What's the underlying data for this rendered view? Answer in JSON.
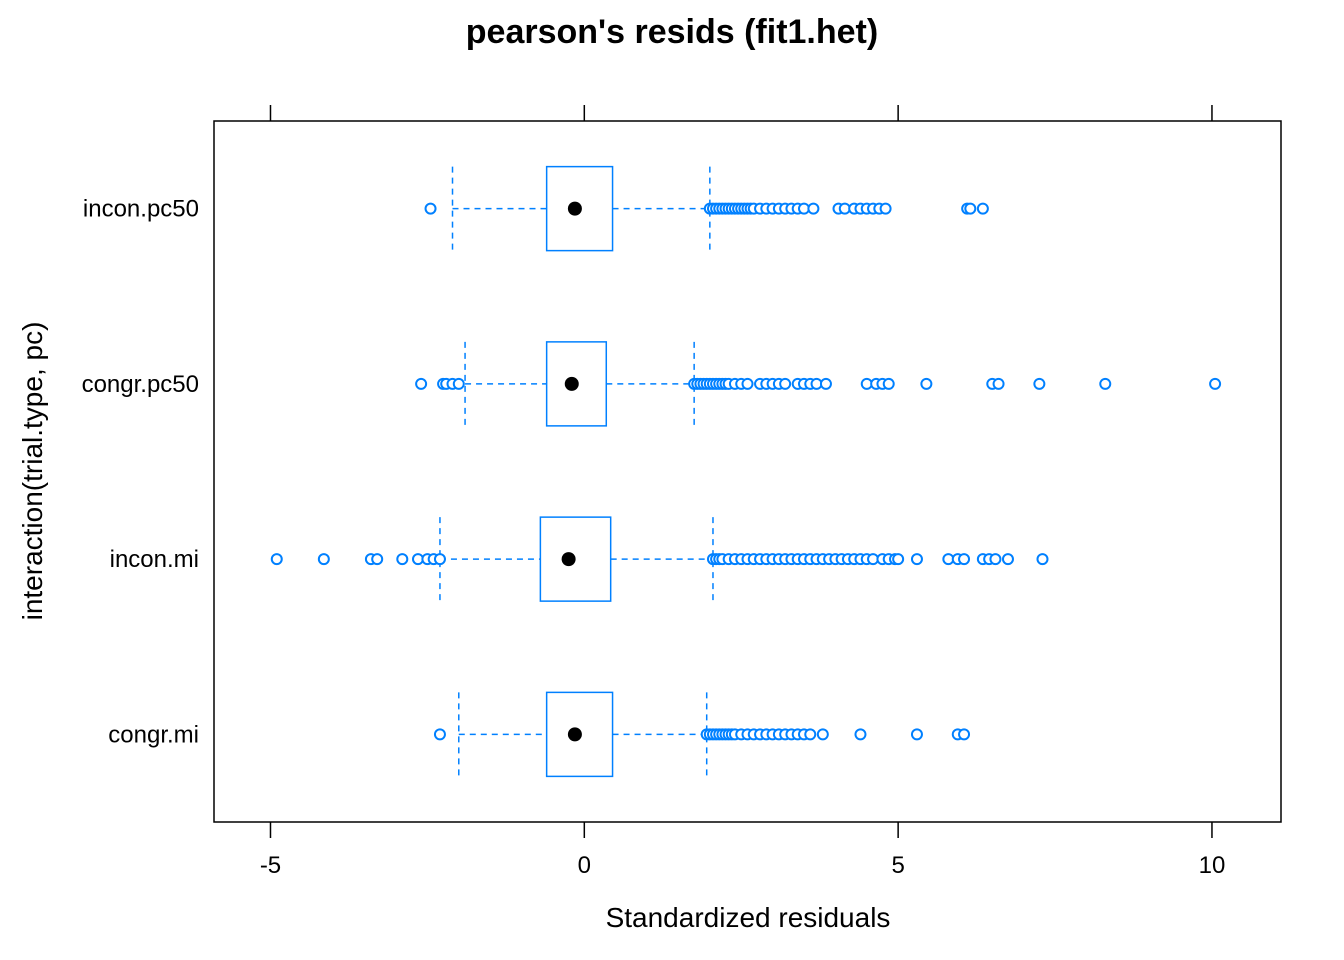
{
  "chart_data": {
    "type": "boxplot",
    "title": "pearson's resids (fit1.het)",
    "xlabel": "Standardized residuals",
    "ylabel": "interaction(trial.type, pc)",
    "xlim": [
      -5.9,
      11.1
    ],
    "xticks": [
      -5,
      0,
      5,
      10
    ],
    "xtick_labels": [
      "-5",
      "0",
      "5",
      "10"
    ],
    "grid": false,
    "colors": {
      "box": "#0080ff",
      "median": "#000000",
      "frame": "#000000"
    },
    "categories": [
      "incon.pc50",
      "congr.pc50",
      "incon.mi",
      "congr.mi"
    ],
    "boxes": [
      {
        "name": "incon.pc50",
        "whisker_low": -2.1,
        "q1": -0.6,
        "median": -0.15,
        "q3": 0.45,
        "whisker_high": 2.0,
        "outliers": [
          -2.45,
          2.0,
          2.05,
          2.1,
          2.15,
          2.2,
          2.25,
          2.3,
          2.35,
          2.4,
          2.45,
          2.5,
          2.55,
          2.6,
          2.65,
          2.7,
          2.8,
          2.9,
          3.0,
          3.1,
          3.2,
          3.3,
          3.4,
          3.5,
          3.65,
          4.05,
          4.15,
          4.3,
          4.4,
          4.5,
          4.6,
          4.7,
          4.8,
          6.1,
          6.15,
          6.35
        ]
      },
      {
        "name": "congr.pc50",
        "whisker_low": -1.9,
        "q1": -0.6,
        "median": -0.2,
        "q3": 0.35,
        "whisker_high": 1.75,
        "outliers": [
          -2.6,
          -2.25,
          -2.2,
          -2.1,
          -2.0,
          1.75,
          1.8,
          1.85,
          1.9,
          1.95,
          2.0,
          2.05,
          2.1,
          2.15,
          2.2,
          2.25,
          2.3,
          2.4,
          2.5,
          2.6,
          2.8,
          2.9,
          3.0,
          3.1,
          3.2,
          3.4,
          3.5,
          3.6,
          3.7,
          3.85,
          4.5,
          4.65,
          4.75,
          4.85,
          5.45,
          6.5,
          6.6,
          7.25,
          8.3,
          10.05
        ]
      },
      {
        "name": "incon.mi",
        "whisker_low": -2.3,
        "q1": -0.7,
        "median": -0.25,
        "q3": 0.42,
        "whisker_high": 2.05,
        "outliers": [
          -4.9,
          -4.15,
          -3.4,
          -3.3,
          -2.9,
          -2.65,
          -2.5,
          -2.4,
          -2.3,
          2.05,
          2.1,
          2.15,
          2.2,
          2.3,
          2.4,
          2.5,
          2.6,
          2.7,
          2.8,
          2.9,
          3.0,
          3.1,
          3.2,
          3.3,
          3.4,
          3.5,
          3.6,
          3.7,
          3.8,
          3.9,
          4.0,
          4.1,
          4.2,
          4.3,
          4.4,
          4.5,
          4.6,
          4.75,
          4.85,
          4.95,
          5.0,
          5.3,
          5.8,
          5.95,
          6.05,
          6.35,
          6.45,
          6.55,
          6.75,
          7.3
        ]
      },
      {
        "name": "congr.mi",
        "whisker_low": -2.0,
        "q1": -0.6,
        "median": -0.15,
        "q3": 0.45,
        "whisker_high": 1.95,
        "outliers": [
          -2.3,
          1.95,
          2.0,
          2.05,
          2.1,
          2.15,
          2.2,
          2.25,
          2.3,
          2.35,
          2.4,
          2.5,
          2.6,
          2.7,
          2.8,
          2.9,
          3.0,
          3.1,
          3.2,
          3.3,
          3.4,
          3.5,
          3.6,
          3.8,
          4.4,
          5.3,
          5.95,
          6.05
        ]
      }
    ]
  }
}
